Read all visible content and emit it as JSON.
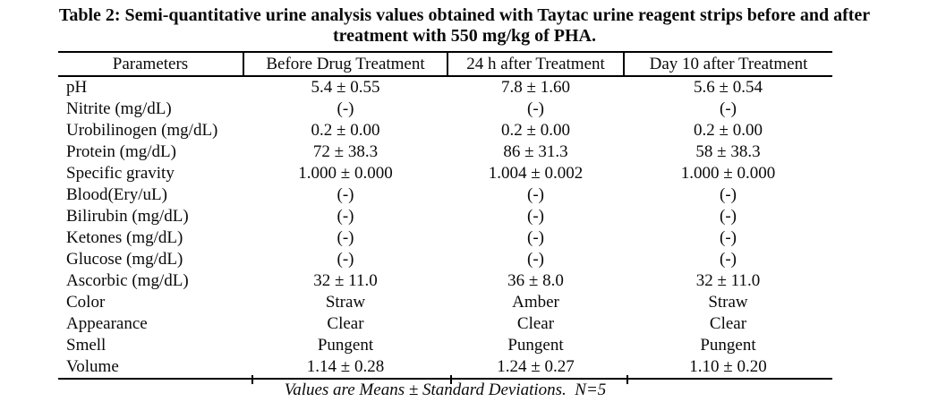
{
  "caption": {
    "line1": "Table 2: Semi-quantitative urine analysis values obtained with Taytac urine reagent strips before and after",
    "line2": "treatment with 550 mg/kg of PHA."
  },
  "table": {
    "columns": [
      "Parameters",
      "Before Drug Treatment",
      "24 h after Treatment",
      "Day 10 after Treatment"
    ],
    "rows": [
      {
        "parameter": "pH",
        "values": [
          "5.4 ± 0.55",
          "7.8 ± 1.60",
          "5.6 ± 0.54"
        ]
      },
      {
        "parameter": "Nitrite (mg/dL)",
        "values": [
          "(-)",
          "(-)",
          "(-)"
        ]
      },
      {
        "parameter": "Urobilinogen (mg/dL)",
        "values": [
          "0.2 ± 0.00",
          "0.2 ± 0.00",
          "0.2 ± 0.00"
        ]
      },
      {
        "parameter": "Protein (mg/dL)",
        "values": [
          "72 ± 38.3",
          "86 ± 31.3",
          "58 ± 38.3"
        ]
      },
      {
        "parameter": "Specific gravity",
        "values": [
          "1.000 ± 0.000",
          "1.004 ± 0.002",
          "1.000 ± 0.000"
        ]
      },
      {
        "parameter": "Blood(Ery/uL)",
        "values": [
          "(-)",
          "(-)",
          "(-)"
        ]
      },
      {
        "parameter": "Bilirubin (mg/dL)",
        "values": [
          "(-)",
          "(-)",
          "(-)"
        ]
      },
      {
        "parameter": "Ketones (mg/dL)",
        "values": [
          "(-)",
          "(-)",
          "(-)"
        ]
      },
      {
        "parameter": "Glucose (mg/dL)",
        "values": [
          "(-)",
          "(-)",
          "(-)"
        ]
      },
      {
        "parameter": "Ascorbic (mg/dL)",
        "values": [
          "32 ± 11.0",
          "36 ± 8.0",
          "32 ± 11.0"
        ]
      },
      {
        "parameter": "Color",
        "values": [
          "Straw",
          "Amber",
          "Straw"
        ]
      },
      {
        "parameter": "Appearance",
        "values": [
          "Clear",
          "Clear",
          "Clear"
        ]
      },
      {
        "parameter": "Smell",
        "values": [
          "Pungent",
          "Pungent",
          "Pungent"
        ]
      },
      {
        "parameter": "Volume",
        "values": [
          "1.14 ± 0.28",
          "1.24 ± 0.27",
          "1.10 ± 0.20"
        ]
      }
    ]
  },
  "footnote": {
    "text": "Values are Means ± Standard Deviations.  N=5"
  }
}
